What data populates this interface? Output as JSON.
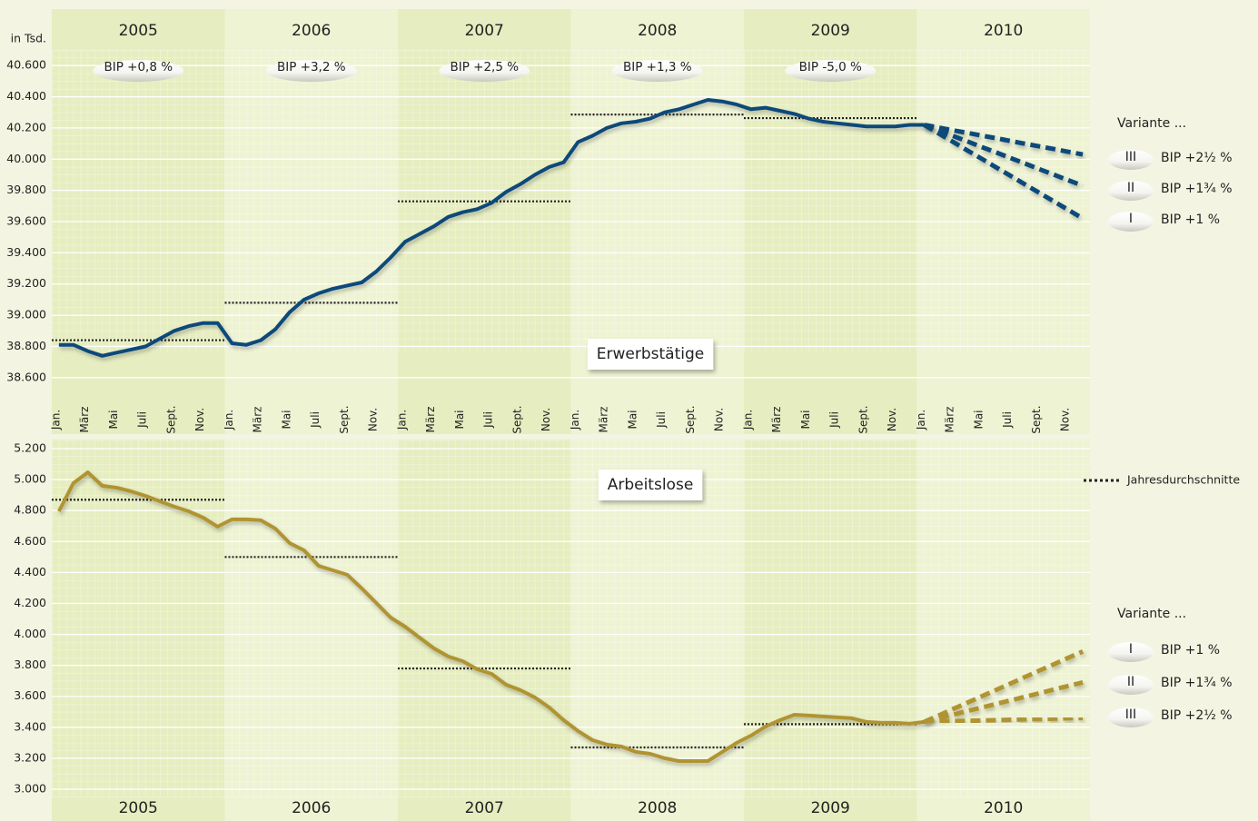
{
  "chart_data": [
    {
      "type": "line",
      "title": "Erwerbstätige",
      "y_label": "in Tsd.",
      "years": [
        "2005",
        "2006",
        "2007",
        "2008",
        "2009",
        "2010"
      ],
      "annotations": [
        "BIP +0,8 %",
        "BIP +3,2 %",
        "BIP +2,5 %",
        "BIP +1,3 %",
        "BIP -5,0 %"
      ],
      "categories": [
        "Jan.",
        null,
        "März",
        null,
        "Mai",
        null,
        "Juli",
        null,
        "Sept.",
        null,
        "Nov.",
        null,
        "Jan.",
        null,
        "März",
        null,
        "Mai",
        null,
        "Juli",
        null,
        "Sept.",
        null,
        "Nov.",
        null,
        "Jan.",
        null,
        "März",
        null,
        "Mai",
        null,
        "Juli",
        null,
        "Sept.",
        null,
        "Nov.",
        null,
        "Jan.",
        null,
        "März",
        null,
        "Mai",
        null,
        "Juli",
        null,
        "Sept.",
        null,
        "Nov.",
        null,
        "Jan.",
        null,
        "März",
        null,
        "Mai",
        null,
        "Juli",
        null,
        "Sept.",
        null,
        "Nov.",
        null,
        "Jan.",
        null,
        "März",
        null,
        "Mai",
        null,
        "Juli",
        null,
        "Sept.",
        null,
        "Nov.",
        null
      ],
      "ylim": [
        38500,
        40700
      ],
      "yticks": [
        {
          "value": 38600,
          "label": "38.600"
        },
        {
          "value": 38800,
          "label": "38.800"
        },
        {
          "value": 39000,
          "label": "39.000"
        },
        {
          "value": 39200,
          "label": "39.200"
        },
        {
          "value": 39400,
          "label": "39.400"
        },
        {
          "value": 39600,
          "label": "39.600"
        },
        {
          "value": 39800,
          "label": "39.800"
        },
        {
          "value": 40000,
          "label": "40.000"
        },
        {
          "value": 40200,
          "label": "40.200"
        },
        {
          "value": 40400,
          "label": "40.400"
        },
        {
          "value": 40600,
          "label": "40.600"
        }
      ],
      "grid": true,
      "legend_title": "Variante ...",
      "averages": {
        "color": "#222222",
        "values": [
          38840,
          39080,
          39730,
          40286,
          40263
        ]
      },
      "series": [
        {
          "color": "#0b4a7a",
          "values": [
            38810,
            38810,
            38770,
            38740,
            38760,
            38780,
            38800,
            38850,
            38900,
            38930,
            38950,
            38950,
            38820,
            38810,
            38840,
            38910,
            39020,
            39100,
            39140,
            39170,
            39190,
            39210,
            39280,
            39370,
            39470,
            39520,
            39570,
            39630,
            39660,
            39680,
            39720,
            39790,
            39840,
            39900,
            39950,
            39980,
            40110,
            40150,
            40200,
            40230,
            40240,
            40260,
            40300,
            40320,
            40350,
            40380,
            40370,
            40350,
            40320,
            40330,
            40310,
            40290,
            40260,
            40240,
            40230,
            40220,
            40210,
            40210,
            40210,
            40220,
            40220,
            null,
            null,
            null,
            null,
            null,
            null,
            null,
            null,
            null,
            null,
            null
          ]
        },
        {
          "name": "BIP +2½ %",
          "variant": "III",
          "color": "#0b4a7a",
          "dashed": true,
          "values": [
            null,
            null,
            null,
            null,
            null,
            null,
            null,
            null,
            null,
            null,
            null,
            null,
            null,
            null,
            null,
            null,
            null,
            null,
            null,
            null,
            null,
            null,
            null,
            null,
            null,
            null,
            null,
            null,
            null,
            null,
            null,
            null,
            null,
            null,
            null,
            null,
            null,
            null,
            null,
            null,
            null,
            null,
            null,
            null,
            null,
            null,
            null,
            null,
            null,
            null,
            null,
            null,
            null,
            null,
            null,
            null,
            null,
            null,
            null,
            null,
            40220,
            40203,
            40185,
            40168,
            40151,
            40134,
            40116,
            40099,
            40082,
            40065,
            40047,
            40030
          ]
        },
        {
          "name": "BIP +1¾ %",
          "variant": "II",
          "color": "#0b4a7a",
          "dashed": true,
          "values": [
            null,
            null,
            null,
            null,
            null,
            null,
            null,
            null,
            null,
            null,
            null,
            null,
            null,
            null,
            null,
            null,
            null,
            null,
            null,
            null,
            null,
            null,
            null,
            null,
            null,
            null,
            null,
            null,
            null,
            null,
            null,
            null,
            null,
            null,
            null,
            null,
            null,
            null,
            null,
            null,
            null,
            null,
            null,
            null,
            null,
            null,
            null,
            null,
            null,
            null,
            null,
            null,
            null,
            null,
            null,
            null,
            null,
            null,
            null,
            null,
            40220,
            40185,
            40149,
            40114,
            40078,
            40043,
            40007,
            39972,
            39936,
            39901,
            39865,
            39830
          ]
        },
        {
          "name": "BIP +1 %",
          "variant": "I",
          "color": "#0b4a7a",
          "dashed": true,
          "values": [
            null,
            null,
            null,
            null,
            null,
            null,
            null,
            null,
            null,
            null,
            null,
            null,
            null,
            null,
            null,
            null,
            null,
            null,
            null,
            null,
            null,
            null,
            null,
            null,
            null,
            null,
            null,
            null,
            null,
            null,
            null,
            null,
            null,
            null,
            null,
            null,
            null,
            null,
            null,
            null,
            null,
            null,
            null,
            null,
            null,
            null,
            null,
            null,
            null,
            null,
            null,
            null,
            null,
            null,
            null,
            null,
            null,
            null,
            null,
            null,
            40220,
            40165,
            40111,
            40056,
            40002,
            39947,
            39893,
            39838,
            39784,
            39729,
            39675,
            39620
          ]
        }
      ]
    },
    {
      "type": "line",
      "title": "Arbeitslose",
      "years": [
        "2005",
        "2006",
        "2007",
        "2008",
        "2009",
        "2010"
      ],
      "ylim": [
        3000,
        5200
      ],
      "yticks": [
        {
          "value": 3000,
          "label": "3.000"
        },
        {
          "value": 3200,
          "label": "3.200"
        },
        {
          "value": 3400,
          "label": "3.400"
        },
        {
          "value": 3600,
          "label": "3.600"
        },
        {
          "value": 3800,
          "label": "3.800"
        },
        {
          "value": 4000,
          "label": "4.000"
        },
        {
          "value": 4200,
          "label": "4.200"
        },
        {
          "value": 4400,
          "label": "4.400"
        },
        {
          "value": 4600,
          "label": "4.600"
        },
        {
          "value": 4800,
          "label": "4.800"
        },
        {
          "value": 5000,
          "label": "5.000"
        },
        {
          "value": 5200,
          "label": "5.200"
        }
      ],
      "grid": true,
      "legend_title": "Variante ...",
      "averages": {
        "name": "Jahresdurchschnitte",
        "color": "#222222",
        "values": [
          4870,
          4500,
          3780,
          3270,
          3420
        ]
      },
      "series": [
        {
          "color": "#b09433",
          "values": [
            4795,
            4977,
            5047,
            4960,
            4948,
            4924,
            4895,
            4860,
            4825,
            4795,
            4754,
            4696,
            4743,
            4743,
            4737,
            4684,
            4590,
            4543,
            4443,
            4414,
            4385,
            4297,
            4203,
            4109,
            4050,
            3980,
            3910,
            3857,
            3827,
            3775,
            3745,
            3675,
            3640,
            3593,
            3528,
            3446,
            3376,
            3317,
            3288,
            3276,
            3241,
            3229,
            3200,
            3182,
            3182,
            3182,
            3241,
            3300,
            3347,
            3405,
            3446,
            3481,
            3476,
            3470,
            3464,
            3458,
            3435,
            3429,
            3429,
            3423,
            3435,
            null,
            null,
            null,
            null,
            null,
            null,
            null,
            null,
            null,
            null,
            null
          ]
        },
        {
          "name": "BIP +1 %",
          "variant": "I",
          "color": "#b09433",
          "dashed": true,
          "values": [
            null,
            null,
            null,
            null,
            null,
            null,
            null,
            null,
            null,
            null,
            null,
            null,
            null,
            null,
            null,
            null,
            null,
            null,
            null,
            null,
            null,
            null,
            null,
            null,
            null,
            null,
            null,
            null,
            null,
            null,
            null,
            null,
            null,
            null,
            null,
            null,
            null,
            null,
            null,
            null,
            null,
            null,
            null,
            null,
            null,
            null,
            null,
            null,
            null,
            null,
            null,
            null,
            null,
            null,
            null,
            null,
            null,
            null,
            null,
            null,
            3435,
            3476,
            3518,
            3559,
            3600,
            3642,
            3683,
            3725,
            3766,
            3807,
            3849,
            3890
          ]
        },
        {
          "name": "BIP +1¾ %",
          "variant": "II",
          "color": "#b09433",
          "dashed": true,
          "values": [
            null,
            null,
            null,
            null,
            null,
            null,
            null,
            null,
            null,
            null,
            null,
            null,
            null,
            null,
            null,
            null,
            null,
            null,
            null,
            null,
            null,
            null,
            null,
            null,
            null,
            null,
            null,
            null,
            null,
            null,
            null,
            null,
            null,
            null,
            null,
            null,
            null,
            null,
            null,
            null,
            null,
            null,
            null,
            null,
            null,
            null,
            null,
            null,
            null,
            null,
            null,
            null,
            null,
            null,
            null,
            null,
            null,
            null,
            null,
            null,
            3435,
            3458,
            3481,
            3505,
            3528,
            3551,
            3574,
            3597,
            3620,
            3644,
            3667,
            3690
          ]
        },
        {
          "name": "BIP +2½ %",
          "variant": "III",
          "color": "#b09433",
          "dashed": true,
          "values": [
            null,
            null,
            null,
            null,
            null,
            null,
            null,
            null,
            null,
            null,
            null,
            null,
            null,
            null,
            null,
            null,
            null,
            null,
            null,
            null,
            null,
            null,
            null,
            null,
            null,
            null,
            null,
            null,
            null,
            null,
            null,
            null,
            null,
            null,
            null,
            null,
            null,
            null,
            null,
            null,
            null,
            null,
            null,
            null,
            null,
            null,
            null,
            null,
            null,
            null,
            null,
            null,
            null,
            null,
            null,
            null,
            null,
            null,
            null,
            null,
            3435,
            3437,
            3440,
            3442,
            3444,
            3446,
            3449,
            3451,
            3453,
            3455,
            3458,
            3460
          ]
        }
      ]
    }
  ]
}
